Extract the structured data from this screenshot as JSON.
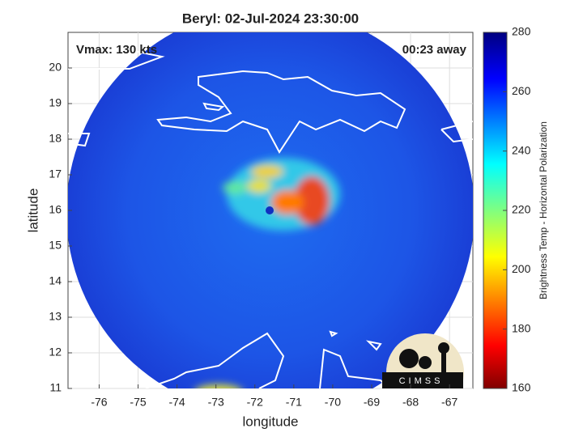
{
  "chart_data": {
    "type": "map",
    "title": "Beryl: 02-Jul-2024 23:30:00",
    "annotations": [
      "Vmax: 130 kts",
      "00:23 away"
    ],
    "xlabel": "longitude",
    "ylabel": "latitude",
    "xlim": [
      -76.8,
      -66.4
    ],
    "xticks": [
      -76,
      -75,
      -74,
      -73,
      -72,
      -71,
      -70,
      -69,
      -68,
      -67
    ],
    "ylim": [
      11,
      21
    ],
    "yticks": [
      11,
      12,
      13,
      14,
      15,
      16,
      17,
      18,
      19,
      20
    ],
    "grid": true,
    "colorbar": {
      "label": "Brightness Temp - Horizontal Polarization",
      "lim": [
        160,
        280
      ],
      "ticks": [
        160,
        180,
        200,
        220,
        240,
        260,
        280
      ]
    },
    "logo": "CIMSS"
  }
}
